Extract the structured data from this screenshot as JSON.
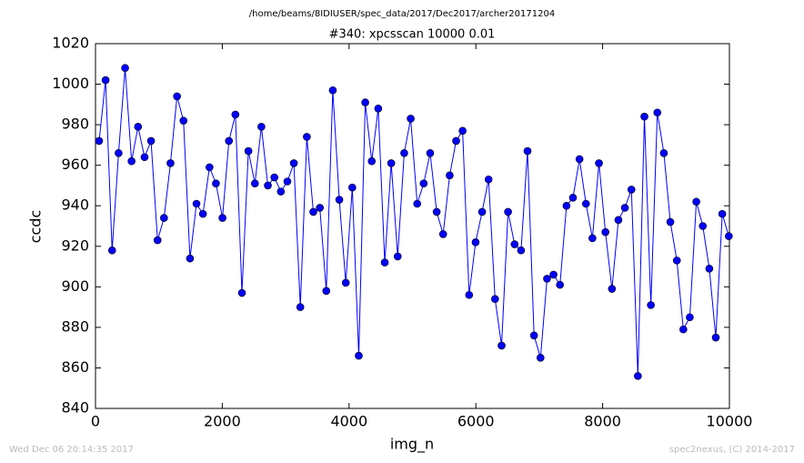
{
  "chart_data": {
    "type": "line",
    "suptitle": "/home/beams/8IDIUSER/spec_data/2017/Dec2017/archer20171204",
    "title": "#340: xpcsscan 10000 0.01",
    "x_label": "img_n",
    "y_label": "ccdc",
    "footer_left": "Wed Dec 06 20:14:35 2017",
    "footer_right": "spec2nexus, (C) 2014-2017",
    "xlim": [
      0,
      10000
    ],
    "xticks": [
      0,
      2000,
      4000,
      6000,
      8000,
      10000
    ],
    "ylim": [
      840,
      1020
    ],
    "yticks": [
      840,
      860,
      880,
      900,
      920,
      940,
      960,
      980,
      1000,
      1020
    ],
    "grid": false,
    "x": [
      57,
      159,
      262,
      364,
      467,
      569,
      671,
      774,
      876,
      979,
      1081,
      1183,
      1286,
      1388,
      1491,
      1593,
      1695,
      1798,
      1900,
      2003,
      2105,
      2207,
      2310,
      2412,
      2515,
      2617,
      2719,
      2822,
      2924,
      3027,
      3129,
      3231,
      3334,
      3436,
      3539,
      3641,
      3743,
      3846,
      3948,
      4051,
      4153,
      4255,
      4358,
      4460,
      4563,
      4665,
      4767,
      4870,
      4972,
      5075,
      5177,
      5279,
      5382,
      5484,
      5587,
      5689,
      5791,
      5894,
      5996,
      6099,
      6201,
      6303,
      6406,
      6508,
      6611,
      6713,
      6815,
      6918,
      7020,
      7123,
      7225,
      7327,
      7430,
      7532,
      7635,
      7737,
      7839,
      7942,
      8044,
      8147,
      8249,
      8351,
      8454,
      8556,
      8659,
      8761,
      8863,
      8966,
      9068,
      9171,
      9273,
      9375,
      9478,
      9580,
      9683,
      9785,
      9887,
      9990
    ],
    "series": [
      {
        "name": "ccdc",
        "color": "#0000ff",
        "values": [
          972,
          1002,
          918,
          966,
          1008,
          962,
          979,
          964,
          972,
          923,
          934,
          961,
          994,
          982,
          914,
          941,
          936,
          959,
          951,
          934,
          972,
          985,
          897,
          967,
          951,
          979,
          950,
          954,
          947,
          952,
          961,
          890,
          974,
          937,
          939,
          898,
          997,
          943,
          902,
          949,
          866,
          991,
          962,
          988,
          912,
          961,
          915,
          966,
          983,
          941,
          951,
          966,
          937,
          926,
          955,
          972,
          977,
          896,
          922,
          937,
          953,
          894,
          871,
          937,
          921,
          918,
          967,
          876,
          865,
          904,
          906,
          901,
          940,
          944,
          963,
          941,
          924,
          961,
          927,
          899,
          933,
          939,
          948,
          856,
          984,
          891,
          986,
          966,
          932,
          913,
          879,
          885,
          942,
          930,
          909,
          875,
          936,
          925
        ]
      }
    ]
  }
}
